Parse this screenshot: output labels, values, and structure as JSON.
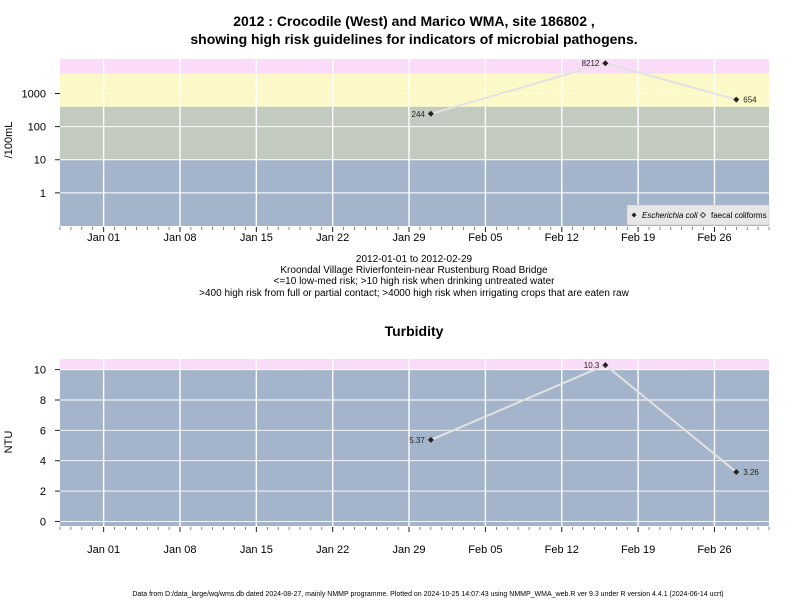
{
  "chart_data": [
    {
      "type": "line",
      "title_line1": "2012 : Crocodile (West) and Marico WMA, site 186802 ,",
      "title_line2": "showing high risk guidelines for indicators of microbial pathogens.",
      "ylabel": "/100mL",
      "y_scale": "log",
      "ylim": [
        0.1,
        11000
      ],
      "y_ticks": [
        {
          "value": 1,
          "label": "1"
        },
        {
          "value": 10,
          "label": "10"
        },
        {
          "value": 100,
          "label": "100"
        },
        {
          "value": 1000,
          "label": "1000"
        }
      ],
      "x_ticks": [
        "Jan 01",
        "Jan 08",
        "Jan 15",
        "Jan 22",
        "Jan 29",
        "Feb 05",
        "Feb 12",
        "Feb 19",
        "Feb 26"
      ],
      "x_range": [
        "2011-12-28",
        "2012-03-02"
      ],
      "bands": [
        {
          "from": 0.1,
          "to": 10,
          "color": "#a3b4cb"
        },
        {
          "from": 10,
          "to": 400,
          "color": "#c3cbc0"
        },
        {
          "from": 400,
          "to": 4000,
          "color": "#fdf8c7"
        },
        {
          "from": 4000,
          "to": 11000,
          "color": "#fadcf9"
        }
      ],
      "series": [
        {
          "name": "Escherichia coli",
          "points": [
            {
              "date": "2012-01-31",
              "y": 244,
              "label": "244"
            },
            {
              "date": "2012-02-16",
              "y": 8212,
              "label": "8212"
            },
            {
              "date": "2012-02-28",
              "y": 654,
              "label": "654"
            }
          ]
        }
      ],
      "legend": {
        "placement": "bottom-right",
        "entries": [
          "Escherichia coli",
          "faecal coliforms"
        ]
      },
      "caption": [
        "2012-01-01 to 2012-02-29",
        "Kroondal Village Rivierfontein-near Rustenburg Road Bridge",
        "<=10 low-med risk; >10 high risk when drinking untreated water",
        ">400 high risk from full or partial contact; >4000 high risk when irrigating crops that are eaten raw"
      ]
    },
    {
      "type": "line",
      "title": "Turbidity",
      "ylabel": "NTU",
      "y_scale": "linear",
      "ylim": [
        -0.3,
        10.7
      ],
      "y_ticks": [
        {
          "value": 0,
          "label": "0"
        },
        {
          "value": 2,
          "label": "2"
        },
        {
          "value": 4,
          "label": "4"
        },
        {
          "value": 6,
          "label": "6"
        },
        {
          "value": 8,
          "label": "8"
        },
        {
          "value": 10,
          "label": "10"
        }
      ],
      "x_ticks": [
        "Jan 01",
        "Jan 08",
        "Jan 15",
        "Jan 22",
        "Jan 29",
        "Feb 05",
        "Feb 12",
        "Feb 19",
        "Feb 26"
      ],
      "x_range": [
        "2011-12-28",
        "2012-03-02"
      ],
      "bands": [
        {
          "from": -0.3,
          "to": 10,
          "color": "#a3b4cb"
        },
        {
          "from": 10,
          "to": 10.7,
          "color": "#fadcf9"
        }
      ],
      "series": [
        {
          "points": [
            {
              "date": "2012-01-31",
              "y": 5.37,
              "label": "5.37"
            },
            {
              "date": "2012-02-16",
              "y": 10.3,
              "label": "10.3"
            },
            {
              "date": "2012-02-28",
              "y": 3.26,
              "label": "3.26"
            }
          ]
        }
      ]
    }
  ],
  "footer": "Data from D:/data_large/wq/wms.db dated 2024-08-27, mainly NMMP programme. Plotted on 2024-10-25 14:07:43 using NMMP_WMA_web.R ver 9.3 under R version 4.4.1 (2024-06-14 ucrt)"
}
